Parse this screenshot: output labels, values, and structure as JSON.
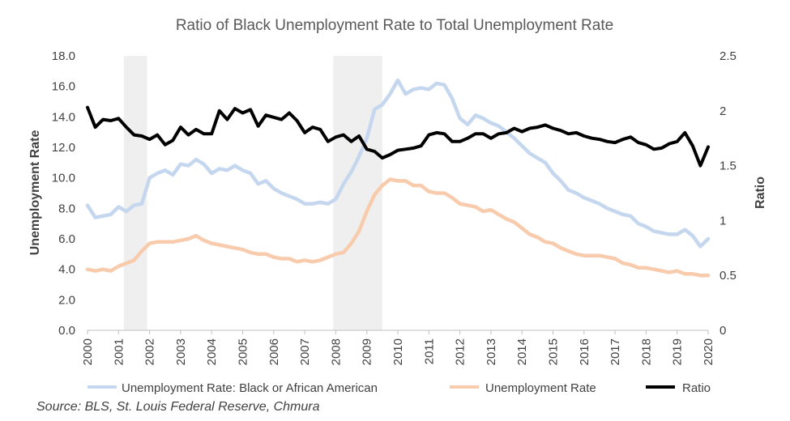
{
  "chart_data": {
    "type": "line",
    "title": "Ratio of Black Unemployment Rate to Total Unemployment Rate",
    "ylabel_left": "Unemployment Rate",
    "ylabel_right": "Ratio",
    "ylim_left": [
      0,
      18
    ],
    "ylim_right": [
      0,
      2.5
    ],
    "yticks_left": [
      "0.0",
      "2.0",
      "4.0",
      "6.0",
      "8.0",
      "10.0",
      "12.0",
      "14.0",
      "16.0",
      "18.0"
    ],
    "yticks_right": [
      "0",
      "0.5",
      "1",
      "1.5",
      "2",
      "2.5"
    ],
    "xticks": [
      "2000",
      "2001",
      "2002",
      "2003",
      "2004",
      "2005",
      "2006",
      "2007",
      "2008",
      "2009",
      "2010",
      "2011",
      "2012",
      "2013",
      "2014",
      "2015",
      "2016",
      "2017",
      "2018",
      "2019",
      "2020"
    ],
    "x_range": [
      2000,
      2020
    ],
    "legend_position": "bottom",
    "recessions": [
      [
        2001.17,
        2001.92
      ],
      [
        2007.92,
        2009.5
      ]
    ],
    "series": [
      {
        "name": "Unemployment Rate: Black or African American",
        "axis": "left",
        "color": "#c5d7ee",
        "points": [
          [
            2000.0,
            8.2
          ],
          [
            2000.25,
            7.4
          ],
          [
            2000.5,
            7.5
          ],
          [
            2000.75,
            7.6
          ],
          [
            2001.0,
            8.1
          ],
          [
            2001.25,
            7.8
          ],
          [
            2001.5,
            8.2
          ],
          [
            2001.75,
            8.3
          ],
          [
            2002.0,
            10.0
          ],
          [
            2002.25,
            10.3
          ],
          [
            2002.5,
            10.5
          ],
          [
            2002.75,
            10.2
          ],
          [
            2003.0,
            10.9
          ],
          [
            2003.25,
            10.8
          ],
          [
            2003.5,
            11.2
          ],
          [
            2003.75,
            10.9
          ],
          [
            2004.0,
            10.3
          ],
          [
            2004.25,
            10.6
          ],
          [
            2004.5,
            10.5
          ],
          [
            2004.75,
            10.8
          ],
          [
            2005.0,
            10.5
          ],
          [
            2005.25,
            10.3
          ],
          [
            2005.5,
            9.6
          ],
          [
            2005.75,
            9.8
          ],
          [
            2006.0,
            9.3
          ],
          [
            2006.25,
            9.0
          ],
          [
            2006.5,
            8.8
          ],
          [
            2006.75,
            8.6
          ],
          [
            2007.0,
            8.3
          ],
          [
            2007.25,
            8.3
          ],
          [
            2007.5,
            8.4
          ],
          [
            2007.75,
            8.3
          ],
          [
            2008.0,
            8.6
          ],
          [
            2008.25,
            9.6
          ],
          [
            2008.5,
            10.4
          ],
          [
            2008.75,
            11.4
          ],
          [
            2009.0,
            12.6
          ],
          [
            2009.25,
            14.5
          ],
          [
            2009.5,
            14.8
          ],
          [
            2009.75,
            15.5
          ],
          [
            2010.0,
            16.4
          ],
          [
            2010.25,
            15.5
          ],
          [
            2010.5,
            15.8
          ],
          [
            2010.75,
            15.9
          ],
          [
            2011.0,
            15.8
          ],
          [
            2011.25,
            16.2
          ],
          [
            2011.5,
            16.1
          ],
          [
            2011.75,
            15.2
          ],
          [
            2012.0,
            13.9
          ],
          [
            2012.25,
            13.5
          ],
          [
            2012.5,
            14.1
          ],
          [
            2012.75,
            13.9
          ],
          [
            2013.0,
            13.6
          ],
          [
            2013.25,
            13.4
          ],
          [
            2013.5,
            13.0
          ],
          [
            2013.75,
            12.6
          ],
          [
            2014.0,
            12.1
          ],
          [
            2014.25,
            11.6
          ],
          [
            2014.5,
            11.3
          ],
          [
            2014.75,
            11.0
          ],
          [
            2015.0,
            10.3
          ],
          [
            2015.25,
            9.8
          ],
          [
            2015.5,
            9.2
          ],
          [
            2015.75,
            9.0
          ],
          [
            2016.0,
            8.7
          ],
          [
            2016.25,
            8.5
          ],
          [
            2016.5,
            8.3
          ],
          [
            2016.75,
            8.0
          ],
          [
            2017.0,
            7.8
          ],
          [
            2017.25,
            7.6
          ],
          [
            2017.5,
            7.5
          ],
          [
            2017.75,
            7.0
          ],
          [
            2018.0,
            6.8
          ],
          [
            2018.25,
            6.5
          ],
          [
            2018.5,
            6.4
          ],
          [
            2018.75,
            6.3
          ],
          [
            2019.0,
            6.3
          ],
          [
            2019.25,
            6.6
          ],
          [
            2019.5,
            6.2
          ],
          [
            2019.75,
            5.5
          ],
          [
            2020.0,
            6.0
          ]
        ]
      },
      {
        "name": "Unemployment Rate",
        "axis": "left",
        "color": "#f8cbad",
        "points": [
          [
            2000.0,
            4.0
          ],
          [
            2000.25,
            3.9
          ],
          [
            2000.5,
            4.0
          ],
          [
            2000.75,
            3.9
          ],
          [
            2001.0,
            4.2
          ],
          [
            2001.25,
            4.4
          ],
          [
            2001.5,
            4.6
          ],
          [
            2001.75,
            5.2
          ],
          [
            2002.0,
            5.7
          ],
          [
            2002.25,
            5.8
          ],
          [
            2002.5,
            5.8
          ],
          [
            2002.75,
            5.8
          ],
          [
            2003.0,
            5.9
          ],
          [
            2003.25,
            6.0
          ],
          [
            2003.5,
            6.2
          ],
          [
            2003.75,
            5.9
          ],
          [
            2004.0,
            5.7
          ],
          [
            2004.25,
            5.6
          ],
          [
            2004.5,
            5.5
          ],
          [
            2004.75,
            5.4
          ],
          [
            2005.0,
            5.3
          ],
          [
            2005.25,
            5.1
          ],
          [
            2005.5,
            5.0
          ],
          [
            2005.75,
            5.0
          ],
          [
            2006.0,
            4.8
          ],
          [
            2006.25,
            4.7
          ],
          [
            2006.5,
            4.7
          ],
          [
            2006.75,
            4.5
          ],
          [
            2007.0,
            4.6
          ],
          [
            2007.25,
            4.5
          ],
          [
            2007.5,
            4.6
          ],
          [
            2007.75,
            4.8
          ],
          [
            2008.0,
            5.0
          ],
          [
            2008.25,
            5.1
          ],
          [
            2008.5,
            5.7
          ],
          [
            2008.75,
            6.5
          ],
          [
            2009.0,
            7.8
          ],
          [
            2009.25,
            8.9
          ],
          [
            2009.5,
            9.5
          ],
          [
            2009.75,
            9.9
          ],
          [
            2010.0,
            9.8
          ],
          [
            2010.25,
            9.8
          ],
          [
            2010.5,
            9.5
          ],
          [
            2010.75,
            9.5
          ],
          [
            2011.0,
            9.1
          ],
          [
            2011.25,
            9.0
          ],
          [
            2011.5,
            9.0
          ],
          [
            2011.75,
            8.7
          ],
          [
            2012.0,
            8.3
          ],
          [
            2012.25,
            8.2
          ],
          [
            2012.5,
            8.1
          ],
          [
            2012.75,
            7.8
          ],
          [
            2013.0,
            7.9
          ],
          [
            2013.25,
            7.6
          ],
          [
            2013.5,
            7.3
          ],
          [
            2013.75,
            7.1
          ],
          [
            2014.0,
            6.7
          ],
          [
            2014.25,
            6.3
          ],
          [
            2014.5,
            6.1
          ],
          [
            2014.75,
            5.8
          ],
          [
            2015.0,
            5.7
          ],
          [
            2015.25,
            5.4
          ],
          [
            2015.5,
            5.2
          ],
          [
            2015.75,
            5.0
          ],
          [
            2016.0,
            4.9
          ],
          [
            2016.25,
            4.9
          ],
          [
            2016.5,
            4.9
          ],
          [
            2016.75,
            4.8
          ],
          [
            2017.0,
            4.7
          ],
          [
            2017.25,
            4.4
          ],
          [
            2017.5,
            4.3
          ],
          [
            2017.75,
            4.1
          ],
          [
            2018.0,
            4.1
          ],
          [
            2018.25,
            4.0
          ],
          [
            2018.5,
            3.9
          ],
          [
            2018.75,
            3.8
          ],
          [
            2019.0,
            3.9
          ],
          [
            2019.25,
            3.7
          ],
          [
            2019.5,
            3.7
          ],
          [
            2019.75,
            3.6
          ],
          [
            2020.0,
            3.6
          ]
        ]
      },
      {
        "name": "Ratio",
        "axis": "right",
        "color": "#000000",
        "points": [
          [
            2000.0,
            2.03
          ],
          [
            2000.25,
            1.85
          ],
          [
            2000.5,
            1.92
          ],
          [
            2000.75,
            1.91
          ],
          [
            2001.0,
            1.93
          ],
          [
            2001.25,
            1.85
          ],
          [
            2001.5,
            1.78
          ],
          [
            2001.75,
            1.77
          ],
          [
            2002.0,
            1.74
          ],
          [
            2002.25,
            1.78
          ],
          [
            2002.5,
            1.69
          ],
          [
            2002.75,
            1.73
          ],
          [
            2003.0,
            1.85
          ],
          [
            2003.25,
            1.78
          ],
          [
            2003.5,
            1.83
          ],
          [
            2003.75,
            1.79
          ],
          [
            2004.0,
            1.79
          ],
          [
            2004.25,
            2.0
          ],
          [
            2004.5,
            1.92
          ],
          [
            2004.75,
            2.02
          ],
          [
            2005.0,
            1.98
          ],
          [
            2005.25,
            2.01
          ],
          [
            2005.5,
            1.86
          ],
          [
            2005.75,
            1.96
          ],
          [
            2006.0,
            1.94
          ],
          [
            2006.25,
            1.92
          ],
          [
            2006.5,
            1.98
          ],
          [
            2006.75,
            1.91
          ],
          [
            2007.0,
            1.8
          ],
          [
            2007.25,
            1.85
          ],
          [
            2007.5,
            1.83
          ],
          [
            2007.75,
            1.72
          ],
          [
            2008.0,
            1.76
          ],
          [
            2008.25,
            1.78
          ],
          [
            2008.5,
            1.72
          ],
          [
            2008.75,
            1.77
          ],
          [
            2009.0,
            1.65
          ],
          [
            2009.25,
            1.63
          ],
          [
            2009.5,
            1.57
          ],
          [
            2009.75,
            1.6
          ],
          [
            2010.0,
            1.64
          ],
          [
            2010.25,
            1.65
          ],
          [
            2010.5,
            1.66
          ],
          [
            2010.75,
            1.68
          ],
          [
            2011.0,
            1.78
          ],
          [
            2011.25,
            1.8
          ],
          [
            2011.5,
            1.79
          ],
          [
            2011.75,
            1.72
          ],
          [
            2012.0,
            1.72
          ],
          [
            2012.25,
            1.75
          ],
          [
            2012.5,
            1.79
          ],
          [
            2012.75,
            1.79
          ],
          [
            2013.0,
            1.75
          ],
          [
            2013.25,
            1.79
          ],
          [
            2013.5,
            1.8
          ],
          [
            2013.75,
            1.84
          ],
          [
            2014.0,
            1.81
          ],
          [
            2014.25,
            1.84
          ],
          [
            2014.5,
            1.85
          ],
          [
            2014.75,
            1.87
          ],
          [
            2015.0,
            1.84
          ],
          [
            2015.25,
            1.82
          ],
          [
            2015.5,
            1.79
          ],
          [
            2015.75,
            1.8
          ],
          [
            2016.0,
            1.77
          ],
          [
            2016.25,
            1.75
          ],
          [
            2016.5,
            1.74
          ],
          [
            2016.75,
            1.72
          ],
          [
            2017.0,
            1.71
          ],
          [
            2017.25,
            1.74
          ],
          [
            2017.5,
            1.76
          ],
          [
            2017.75,
            1.71
          ],
          [
            2018.0,
            1.69
          ],
          [
            2018.25,
            1.65
          ],
          [
            2018.5,
            1.66
          ],
          [
            2018.75,
            1.7
          ],
          [
            2019.0,
            1.72
          ],
          [
            2019.25,
            1.8
          ],
          [
            2019.5,
            1.68
          ],
          [
            2019.75,
            1.5
          ],
          [
            2020.0,
            1.67
          ]
        ]
      }
    ],
    "source": "Source: BLS, St. Louis Federal Reserve, Chmura"
  }
}
